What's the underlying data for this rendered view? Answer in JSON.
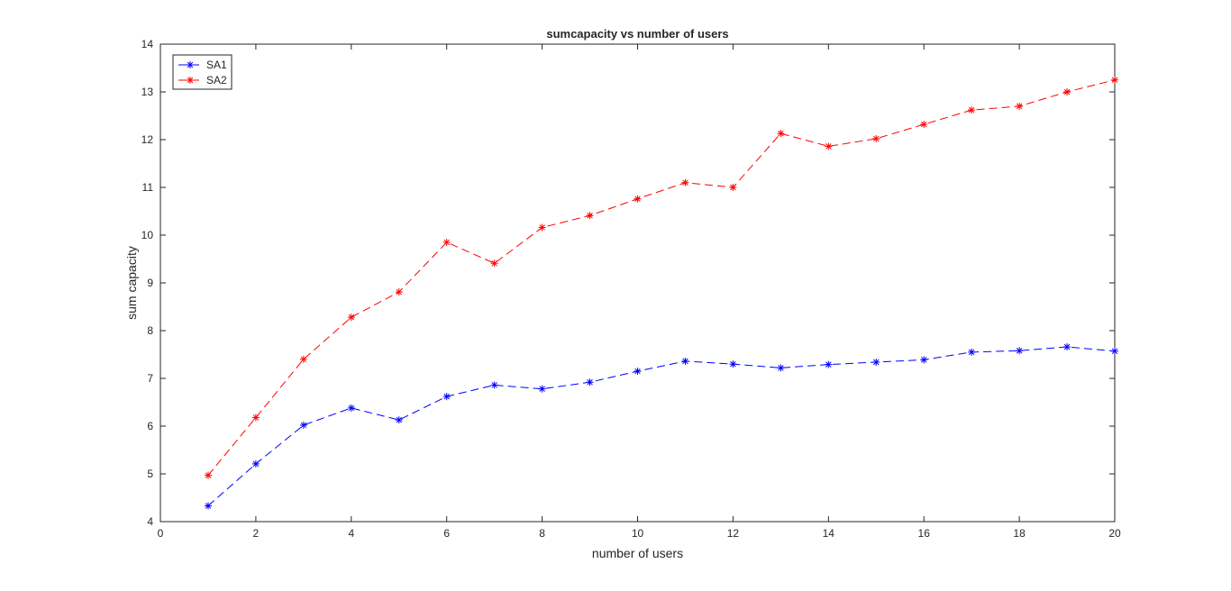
{
  "chart_data": {
    "type": "line",
    "title": "sumcapacity vs number of users",
    "xlabel": "number of users",
    "ylabel": "sum capacity",
    "xlim": [
      0,
      20
    ],
    "ylim": [
      4,
      14
    ],
    "xticks": [
      0,
      2,
      4,
      6,
      8,
      10,
      12,
      14,
      16,
      18,
      20
    ],
    "yticks": [
      4,
      5,
      6,
      7,
      8,
      9,
      10,
      11,
      12,
      13,
      14
    ],
    "grid": false,
    "legend_position": "top-left",
    "x": [
      1,
      2,
      3,
      4,
      5,
      6,
      7,
      8,
      9,
      10,
      11,
      12,
      13,
      14,
      15,
      16,
      17,
      18,
      19,
      20
    ],
    "series": [
      {
        "name": "SA1",
        "color": "#0000ff",
        "line_style": "dashed",
        "marker": "asterisk",
        "values": [
          4.33,
          5.21,
          6.02,
          6.38,
          6.13,
          6.62,
          6.86,
          6.78,
          6.92,
          7.15,
          7.36,
          7.3,
          7.22,
          7.29,
          7.34,
          7.39,
          7.55,
          7.58,
          7.66,
          7.57
        ]
      },
      {
        "name": "SA2",
        "color": "#ff0000",
        "line_style": "dashed",
        "marker": "asterisk",
        "values": [
          4.97,
          6.18,
          7.4,
          8.28,
          8.81,
          9.85,
          9.41,
          10.16,
          10.41,
          10.76,
          11.1,
          11.0,
          12.13,
          11.86,
          12.02,
          12.32,
          12.62,
          12.7,
          13.0,
          13.25
        ]
      }
    ]
  }
}
